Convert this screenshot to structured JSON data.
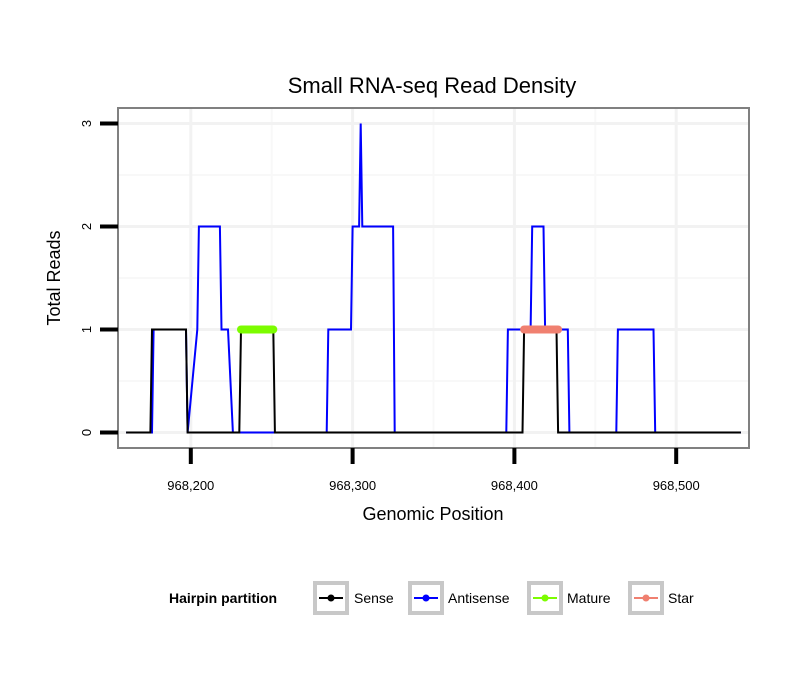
{
  "chart_data": {
    "type": "line",
    "title": "Small RNA-seq Read Density",
    "xlabel": "Genomic Position",
    "ylabel": "Total Reads",
    "xlim": [
      968155,
      968545
    ],
    "ylim": [
      -0.15,
      3.15
    ],
    "xticks": [
      968200,
      968300,
      968400,
      968500
    ],
    "xtick_labels": [
      "968,200",
      "968,300",
      "968,400",
      "968,500"
    ],
    "yticks": [
      0,
      1,
      2,
      3
    ],
    "ytick_labels": [
      "0",
      "1",
      "2",
      "3"
    ],
    "grid": true,
    "legend": {
      "title": "Hairpin partition",
      "position": "bottom",
      "entries": [
        "Sense",
        "Antisense",
        "Mature",
        "Star"
      ]
    },
    "series": [
      {
        "name": "Antisense",
        "color": "#0000ff",
        "width": 2,
        "x": [
          968160,
          968176,
          968177,
          968197,
          968198,
          968204,
          968205,
          968218,
          968219,
          968222,
          968223,
          968226,
          968227,
          968284,
          968285,
          968299,
          968300,
          968303,
          968304,
          968305,
          968306,
          968307,
          968308,
          968325,
          968326,
          968395,
          968396,
          968410,
          968411,
          968418,
          968419,
          968425,
          968426,
          968433,
          968434,
          968463,
          968464,
          968486,
          968487,
          968540
        ],
        "y": [
          0,
          0,
          1,
          1,
          0,
          1,
          2,
          2,
          1,
          1,
          1,
          0,
          0,
          0,
          1,
          1,
          2,
          2,
          2,
          3,
          2,
          2,
          2,
          2,
          0,
          0,
          1,
          1,
          2,
          2,
          1,
          1,
          1,
          1,
          0,
          0,
          1,
          1,
          0,
          0
        ]
      },
      {
        "name": "Sense",
        "color": "#000000",
        "width": 2,
        "x": [
          968160,
          968175,
          968176,
          968197,
          968198,
          968230,
          968231,
          968251,
          968252,
          968405,
          968406,
          968426,
          968427,
          968540
        ],
        "y": [
          0,
          0,
          1,
          1,
          0,
          0,
          1,
          1,
          0,
          0,
          1,
          1,
          0,
          0
        ]
      },
      {
        "name": "Mature",
        "color": "#7cfc00",
        "width": 8,
        "x": [
          968231,
          968251
        ],
        "y": [
          1,
          1
        ]
      },
      {
        "name": "Star",
        "color": "#f08070",
        "width": 8,
        "x": [
          968406,
          968427
        ],
        "y": [
          1,
          1
        ]
      }
    ]
  }
}
